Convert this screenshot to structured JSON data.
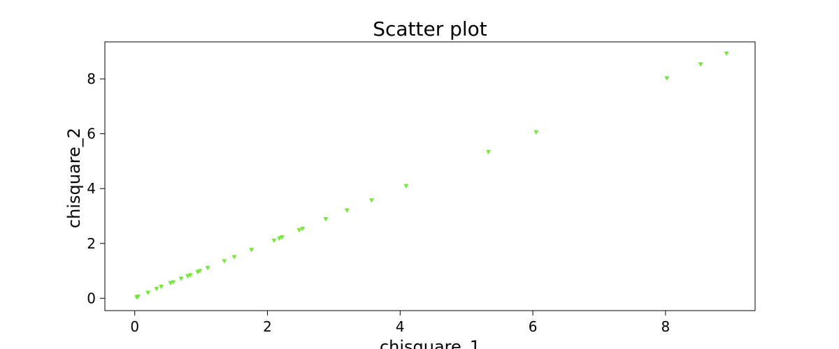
{
  "chart_data": {
    "type": "scatter",
    "title": "Scatter plot",
    "xlabel": "chisquare_1",
    "ylabel": "chisquare_2",
    "xlim": [
      -0.45,
      9.35
    ],
    "ylim": [
      -0.45,
      9.35
    ],
    "xticks": [
      0,
      2,
      4,
      6,
      8
    ],
    "yticks": [
      0,
      2,
      4,
      6,
      8
    ],
    "grid": false,
    "marker": "triangle-down",
    "color": "#77e63d",
    "points": [
      {
        "x": 0.03,
        "y": 0.03
      },
      {
        "x": 0.05,
        "y": 0.06
      },
      {
        "x": 0.2,
        "y": 0.2
      },
      {
        "x": 0.33,
        "y": 0.34
      },
      {
        "x": 0.4,
        "y": 0.42
      },
      {
        "x": 0.54,
        "y": 0.55
      },
      {
        "x": 0.58,
        "y": 0.58
      },
      {
        "x": 0.7,
        "y": 0.71
      },
      {
        "x": 0.8,
        "y": 0.8
      },
      {
        "x": 0.84,
        "y": 0.84
      },
      {
        "x": 0.95,
        "y": 0.95
      },
      {
        "x": 0.98,
        "y": 0.99
      },
      {
        "x": 1.1,
        "y": 1.1
      },
      {
        "x": 1.35,
        "y": 1.35
      },
      {
        "x": 1.5,
        "y": 1.5
      },
      {
        "x": 1.76,
        "y": 1.76
      },
      {
        "x": 2.1,
        "y": 2.1
      },
      {
        "x": 2.18,
        "y": 2.18
      },
      {
        "x": 2.22,
        "y": 2.22
      },
      {
        "x": 2.48,
        "y": 2.48
      },
      {
        "x": 2.53,
        "y": 2.53
      },
      {
        "x": 2.88,
        "y": 2.88
      },
      {
        "x": 3.2,
        "y": 3.2
      },
      {
        "x": 3.57,
        "y": 3.57
      },
      {
        "x": 4.09,
        "y": 4.09
      },
      {
        "x": 5.33,
        "y": 5.33
      },
      {
        "x": 6.05,
        "y": 6.05
      },
      {
        "x": 8.02,
        "y": 8.02
      },
      {
        "x": 8.53,
        "y": 8.53
      },
      {
        "x": 8.92,
        "y": 8.92
      }
    ]
  }
}
